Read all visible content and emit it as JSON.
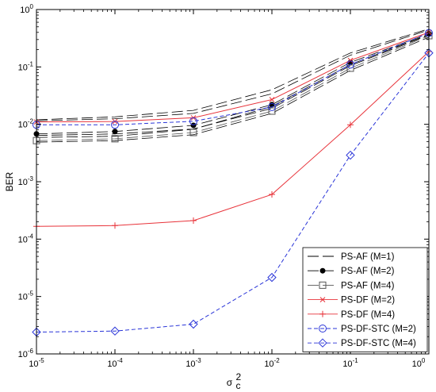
{
  "chart_data": {
    "type": "line",
    "xscale": "log",
    "yscale": "log",
    "xlim": [
      1e-05,
      1
    ],
    "ylim": [
      1e-06,
      1
    ],
    "x_ticks": [
      {
        "value": 1e-05,
        "base": "10",
        "exp": "-5"
      },
      {
        "value": 0.0001,
        "base": "10",
        "exp": "-4"
      },
      {
        "value": 0.001,
        "base": "10",
        "exp": "-3"
      },
      {
        "value": 0.01,
        "base": "10",
        "exp": "-2"
      },
      {
        "value": 0.1,
        "base": "10",
        "exp": "-1"
      },
      {
        "value": 1,
        "base": "10",
        "exp": "0"
      }
    ],
    "y_ticks": [
      {
        "value": 1e-06,
        "base": "10",
        "exp": "-6"
      },
      {
        "value": 1e-05,
        "base": "10",
        "exp": "-5"
      },
      {
        "value": 0.0001,
        "base": "10",
        "exp": "-4"
      },
      {
        "value": 0.001,
        "base": "10",
        "exp": "-3"
      },
      {
        "value": 0.01,
        "base": "10",
        "exp": "-2"
      },
      {
        "value": 0.1,
        "base": "10",
        "exp": "-1"
      },
      {
        "value": 1,
        "base": "10",
        "exp": "0"
      }
    ],
    "xlabel": {
      "base": "σ",
      "sub": "c",
      "sup": "2"
    },
    "ylabel": "BER",
    "grid": false,
    "legend_position": "bottom-right",
    "x": [
      1e-05,
      0.0001,
      0.001,
      0.01,
      0.1,
      1
    ],
    "series": [
      {
        "name": "PS-AF (M=1)",
        "color": "#000000",
        "dash": "long-dash",
        "marker": "none",
        "values": [
          0.0115,
          0.0125,
          0.0155,
          0.034,
          0.16,
          0.44
        ]
      },
      {
        "name": "PS-AF (M=2)",
        "color": "#000000",
        "dash": "long-dash",
        "marker": "filled-circle",
        "values": [
          0.0068,
          0.0075,
          0.0096,
          0.022,
          0.12,
          0.38
        ]
      },
      {
        "name": "PS-AF (M=4)",
        "color": "#000000",
        "dash": "long-dash",
        "marker": "square",
        "values": [
          0.0052,
          0.0056,
          0.0072,
          0.017,
          0.095,
          0.35
        ]
      },
      {
        "name": "PS-DF (M=2)",
        "color": "#e8333a",
        "dash": "solid",
        "marker": "x",
        "values": [
          0.011,
          0.0112,
          0.013,
          0.027,
          0.13,
          0.4
        ]
      },
      {
        "name": "PS-DF (M=4)",
        "color": "#e8333a",
        "dash": "solid",
        "marker": "plus",
        "values": [
          0.000167,
          0.000172,
          0.00021,
          0.0006,
          0.0098,
          0.185
        ]
      },
      {
        "name": "PS-DF-STC (M=2)",
        "color": "#2a35d8",
        "dash": "dashed",
        "marker": "circle",
        "values": [
          0.0098,
          0.0098,
          0.0113,
          0.02,
          0.11,
          0.39
        ]
      },
      {
        "name": "PS-DF-STC (M=4)",
        "color": "#2a35d8",
        "dash": "dashed",
        "marker": "diamond",
        "values": [
          2.4e-06,
          2.5e-06,
          3.3e-06,
          2.15e-05,
          0.0029,
          0.175
        ]
      }
    ],
    "extra_dashed_lines": [
      {
        "color": "#000000",
        "values": [
          0.012,
          0.0135,
          0.0175,
          0.04,
          0.175,
          0.46
        ]
      },
      {
        "color": "#000000",
        "values": [
          0.0064,
          0.0068,
          0.0083,
          0.019,
          0.105,
          0.36
        ]
      },
      {
        "color": "#000000",
        "values": [
          0.0059,
          0.0062,
          0.0082,
          0.0205,
          0.11,
          0.37
        ]
      },
      {
        "color": "#000000",
        "values": [
          0.0049,
          0.0052,
          0.0066,
          0.0155,
          0.087,
          0.33
        ]
      }
    ]
  }
}
